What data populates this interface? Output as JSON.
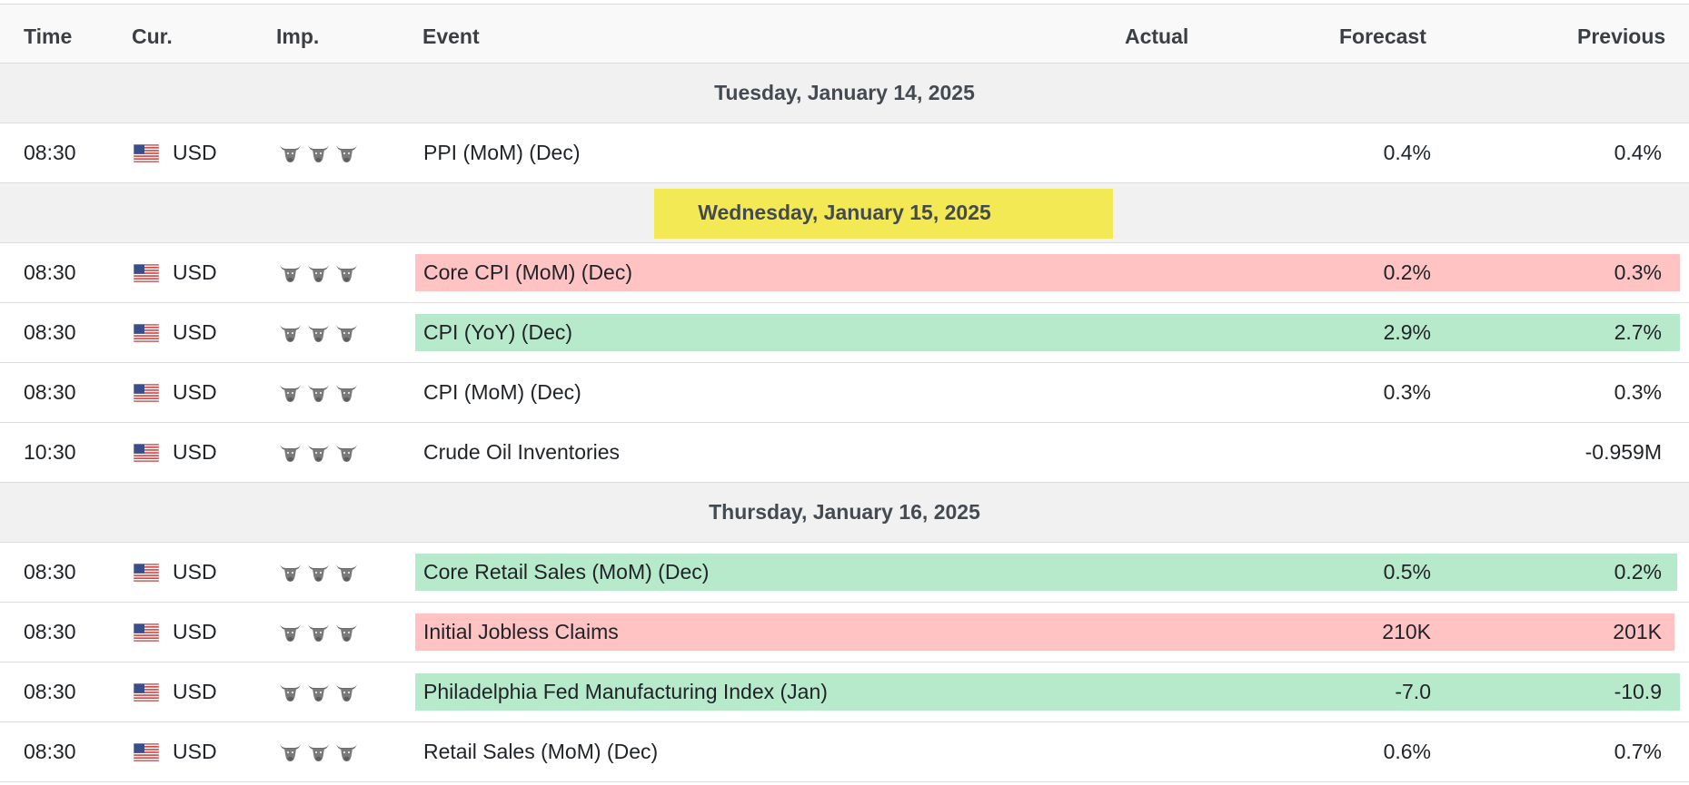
{
  "header": {
    "time": "Time",
    "currency": "Cur.",
    "importance": "Imp.",
    "event": "Event",
    "actual": "Actual",
    "forecast": "Forecast",
    "previous": "Previous"
  },
  "days": [
    {
      "date": "Tuesday, January 14, 2025",
      "highlighted": false,
      "events": [
        {
          "time": "08:30",
          "currency": "USD",
          "flag_icon": "us-flag-icon",
          "importance_icon": "bull-icon",
          "importance": 3,
          "event": "PPI (MoM) (Dec)",
          "actual": "",
          "forecast": "0.4%",
          "previous": "0.4%",
          "highlight": "none"
        }
      ]
    },
    {
      "date": "Wednesday, January 15, 2025",
      "highlighted": true,
      "highlight_color": "#f3e955",
      "events": [
        {
          "time": "08:30",
          "currency": "USD",
          "flag_icon": "us-flag-icon",
          "importance_icon": "bull-icon",
          "importance": 3,
          "event": "Core CPI (MoM) (Dec)",
          "actual": "",
          "forecast": "0.2%",
          "previous": "0.3%",
          "highlight": "negative"
        },
        {
          "time": "08:30",
          "currency": "USD",
          "flag_icon": "us-flag-icon",
          "importance_icon": "bull-icon",
          "importance": 3,
          "event": "CPI (YoY) (Dec)",
          "actual": "",
          "forecast": "2.9%",
          "previous": "2.7%",
          "highlight": "positive"
        },
        {
          "time": "08:30",
          "currency": "USD",
          "flag_icon": "us-flag-icon",
          "importance_icon": "bull-icon",
          "importance": 3,
          "event": "CPI (MoM) (Dec)",
          "actual": "",
          "forecast": "0.3%",
          "previous": "0.3%",
          "highlight": "none"
        },
        {
          "time": "10:30",
          "currency": "USD",
          "flag_icon": "us-flag-icon",
          "importance_icon": "bull-icon",
          "importance": 3,
          "event": "Crude Oil Inventories",
          "actual": "",
          "forecast": "",
          "previous": "-0.959M",
          "highlight": "none"
        }
      ]
    },
    {
      "date": "Thursday, January 16, 2025",
      "highlighted": false,
      "events": [
        {
          "time": "08:30",
          "currency": "USD",
          "flag_icon": "us-flag-icon",
          "importance_icon": "bull-icon",
          "importance": 3,
          "event": "Core Retail Sales (MoM) (Dec)",
          "actual": "",
          "forecast": "0.5%",
          "previous": "0.2%",
          "highlight": "positive"
        },
        {
          "time": "08:30",
          "currency": "USD",
          "flag_icon": "us-flag-icon",
          "importance_icon": "bull-icon",
          "importance": 3,
          "event": "Initial Jobless Claims",
          "actual": "",
          "forecast": "210K",
          "previous": "201K",
          "highlight": "negative"
        },
        {
          "time": "08:30",
          "currency": "USD",
          "flag_icon": "us-flag-icon",
          "importance_icon": "bull-icon",
          "importance": 3,
          "event": "Philadelphia Fed Manufacturing Index (Jan)",
          "actual": "",
          "forecast": "-7.0",
          "previous": "-10.9",
          "highlight": "positive"
        },
        {
          "time": "08:30",
          "currency": "USD",
          "flag_icon": "us-flag-icon",
          "importance_icon": "bull-icon",
          "importance": 3,
          "event": "Retail Sales (MoM) (Dec)",
          "actual": "",
          "forecast": "0.6%",
          "previous": "0.7%",
          "highlight": "none"
        }
      ]
    }
  ],
  "colors": {
    "negative": "#ffc3c3",
    "positive": "#b7e9cb",
    "day_highlight": "#f3e955",
    "day_band": "#f1f1f1"
  }
}
